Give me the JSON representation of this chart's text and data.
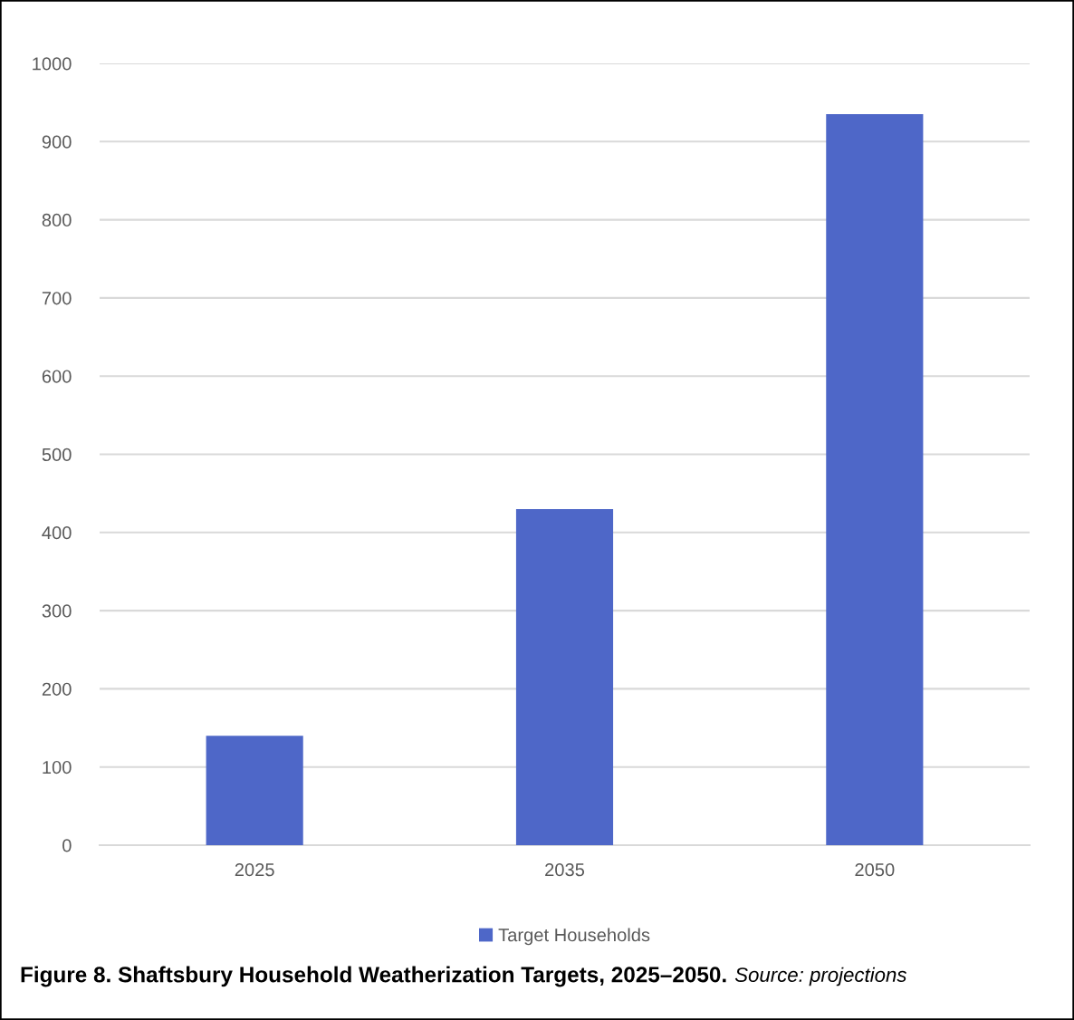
{
  "chart_data": {
    "type": "bar",
    "title": "Figure 8. Shaftsbury Household Weatherization Targets, 2025–2050.",
    "annotations": [
      "Source: projections"
    ],
    "categories": [
      "2025",
      "2035",
      "2050"
    ],
    "series": [
      {
        "name": "Target Households",
        "color": "#4e67c8",
        "values": [
          140,
          430,
          935
        ]
      }
    ],
    "ylim": [
      0,
      1000
    ],
    "yticks": [
      0,
      100,
      200,
      300,
      400,
      500,
      600,
      700,
      800,
      900,
      1000
    ],
    "grid": "y",
    "legend": "bottom"
  }
}
